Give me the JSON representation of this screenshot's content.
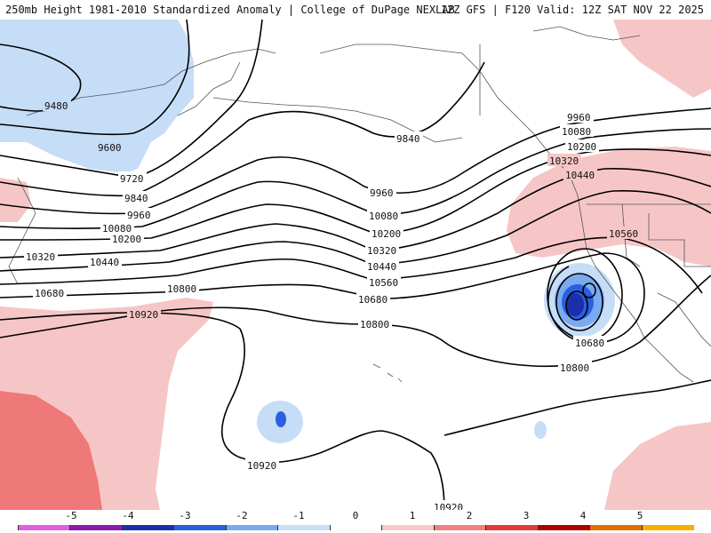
{
  "header": {
    "title": "250mb Height 1981-2010 Standardized Anomaly | College of DuPage NEXLAB",
    "run_info": "12Z GFS | F120 Valid: 12Z SAT NOV 22 2025"
  },
  "contour_labels": {
    "c9480": "9480",
    "c9600": "9600",
    "c9720": "9720",
    "c9840a": "9840",
    "c9840b": "9840",
    "c9960a": "9960",
    "c9960b": "9960",
    "c9960c": "9960",
    "c10080a": "10080",
    "c10080b": "10080",
    "c10080c": "10080",
    "c10200a": "10200",
    "c10200b": "10200",
    "c10200c": "10200",
    "c10320a": "10320",
    "c10320b": "10320",
    "c10320c": "10320",
    "c10440a": "10440",
    "c10440b": "10440",
    "c10440c": "10440",
    "c10560a": "10560",
    "c10560b": "10560",
    "c10680a": "10680",
    "c10680b": "10680",
    "c10680c": "10680",
    "c10800a": "10800",
    "c10800b": "10800",
    "c10800c": "10800",
    "c10920a": "10920",
    "c10920b": "10920",
    "c10920c": "10920"
  },
  "legend": {
    "ticks": [
      "-5",
      "-4",
      "-3",
      "-2",
      "-1",
      "0",
      "1",
      "2",
      "3",
      "4",
      "5"
    ],
    "colors": [
      "#e060e0",
      "#8a1ab0",
      "#1a2fa8",
      "#2a5fe0",
      "#7aaaf0",
      "#c8e0fa",
      "#ffffff",
      "#f8c8c8",
      "#f08080",
      "#e83838",
      "#b00000",
      "#e07000",
      "#f8b000"
    ],
    "positive_color": "#f6c6c6",
    "negative_color": "#c6ddf8"
  }
}
